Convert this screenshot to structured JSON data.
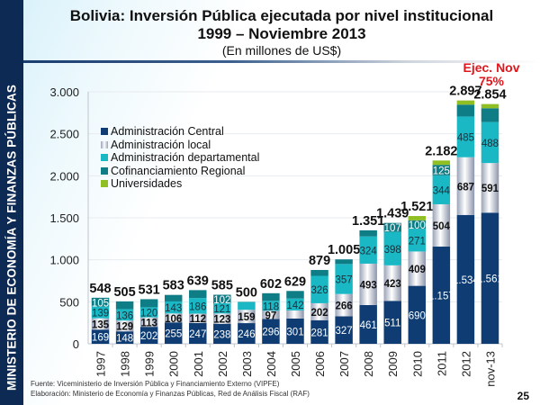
{
  "sidebar": {
    "label": "MINISTERIO DE ECONOMÍA Y FINANZAS PÚBLICAS"
  },
  "header": {
    "title": "Bolivia: Inversión Pública ejecutada por nivel institucional",
    "subtitle": "1999 – Noviembre 2013",
    "units": "(En millones de US$)"
  },
  "annotation": {
    "line1": "Ejec. Nov",
    "line2": "75%"
  },
  "footer": {
    "source": "Fuente: Viceministerio de Inversión Pública y Financiamiento Externo (VIPFE)",
    "elaboration": "Elaboración: Ministerio de Economía y Finanzas Públicas, Red de Análisis Fiscal (RAF)",
    "page": "25"
  },
  "colors": {
    "central": "#0f3d73",
    "local": "#e6e8ef",
    "departamental": "#1ab8c4",
    "cofinanciamiento": "#0f7d86",
    "universidades": "#8fbf22",
    "sideband": "#0d2a55",
    "annotation": "#e0161c"
  },
  "chart_data": {
    "type": "bar",
    "stacked": true,
    "title": "Bolivia: Inversión Pública ejecutada por nivel institucional 1999 – Noviembre 2013",
    "subtitle": "(En millones de US$)",
    "xlabel": "",
    "ylabel": "",
    "ylim": [
      0,
      3000
    ],
    "yticks": [
      0,
      500,
      1000,
      1500,
      2000,
      2500,
      3000
    ],
    "ytick_labels": [
      "0",
      "500",
      "1.000",
      "1.500",
      "2.000",
      "2.500",
      "3.000"
    ],
    "grid": true,
    "legend_position": "top-left",
    "categories": [
      "1997",
      "1998",
      "1999",
      "2000",
      "2001",
      "2002",
      "2003",
      "2004",
      "2005",
      "2006",
      "2007",
      "2008",
      "2009",
      "2010",
      "2011",
      "2012",
      "nov-13"
    ],
    "series": [
      {
        "name": "Administración Central",
        "key": "central",
        "values": [
          169,
          148,
          202,
          255,
          247,
          238,
          246,
          296,
          301,
          281,
          327,
          461,
          511,
          690,
          1157,
          1534,
          1561
        ],
        "labels": [
          "169",
          "148",
          "202",
          "255",
          "247",
          "238",
          "246",
          "296",
          "301",
          "281",
          "327",
          "461",
          "511",
          "690",
          "1.157",
          "1.534",
          "1.561"
        ]
      },
      {
        "name": "Administración local",
        "key": "local",
        "values": [
          135,
          129,
          113,
          106,
          112,
          123,
          159,
          97,
          96,
          202,
          266,
          493,
          423,
          409,
          504,
          687,
          591
        ],
        "labels": [
          "135",
          "129",
          "113",
          "106",
          "112",
          "123",
          "159",
          "97",
          "96",
          "202",
          "266",
          "493",
          "423",
          "409",
          "504",
          "687",
          "591"
        ]
      },
      {
        "name": "Administración departamental",
        "key": "departamental",
        "values": [
          139,
          136,
          120,
          143,
          186,
          121,
          92,
          118,
          142,
          326,
          357,
          324,
          398,
          271,
          344,
          485,
          488
        ],
        "labels": [
          "139",
          "136",
          "120",
          "143",
          "186",
          "121",
          "92",
          "118",
          "142",
          "326",
          "357",
          "324",
          "398",
          "271",
          "344",
          "485",
          "488"
        ]
      },
      {
        "name": "Cofinanciamiento Regional",
        "key": "cofinanciamiento",
        "values": [
          105,
          92,
          96,
          78,
          94,
          102,
          3,
          91,
          90,
          70,
          55,
          73,
          107,
          100,
          125,
          141,
          164
        ],
        "labels": [
          "105",
          "92",
          "96",
          "78",
          "",
          "102",
          "",
          "",
          "",
          "",
          "55",
          "73",
          "107",
          "100",
          "125",
          "",
          ""
        ]
      },
      {
        "name": "Universidades",
        "key": "universidades",
        "values": [
          0,
          0,
          0,
          0,
          0,
          0,
          0,
          0,
          0,
          0,
          0,
          0,
          0,
          51,
          52,
          50,
          50
        ],
        "labels": [
          "",
          "",
          "",
          "",
          "",
          "",
          "",
          "",
          "",
          "",
          "",
          "",
          "",
          "",
          "",
          "",
          ""
        ]
      }
    ],
    "totals": [
      548,
      505,
      531,
      583,
      639,
      585,
      500,
      602,
      629,
      879,
      1005,
      1351,
      1439,
      1521,
      2182,
      2897,
      2854
    ],
    "total_labels": [
      "548",
      "505",
      "531",
      "583",
      "639",
      "585",
      "500",
      "602",
      "629",
      "879",
      "1.005",
      "1.351",
      "1.439",
      "1.521",
      "2.182",
      "2.897",
      "2.854"
    ],
    "annotations": [
      {
        "category": "nov-13",
        "text": "Ejec. Nov 75%"
      }
    ]
  }
}
